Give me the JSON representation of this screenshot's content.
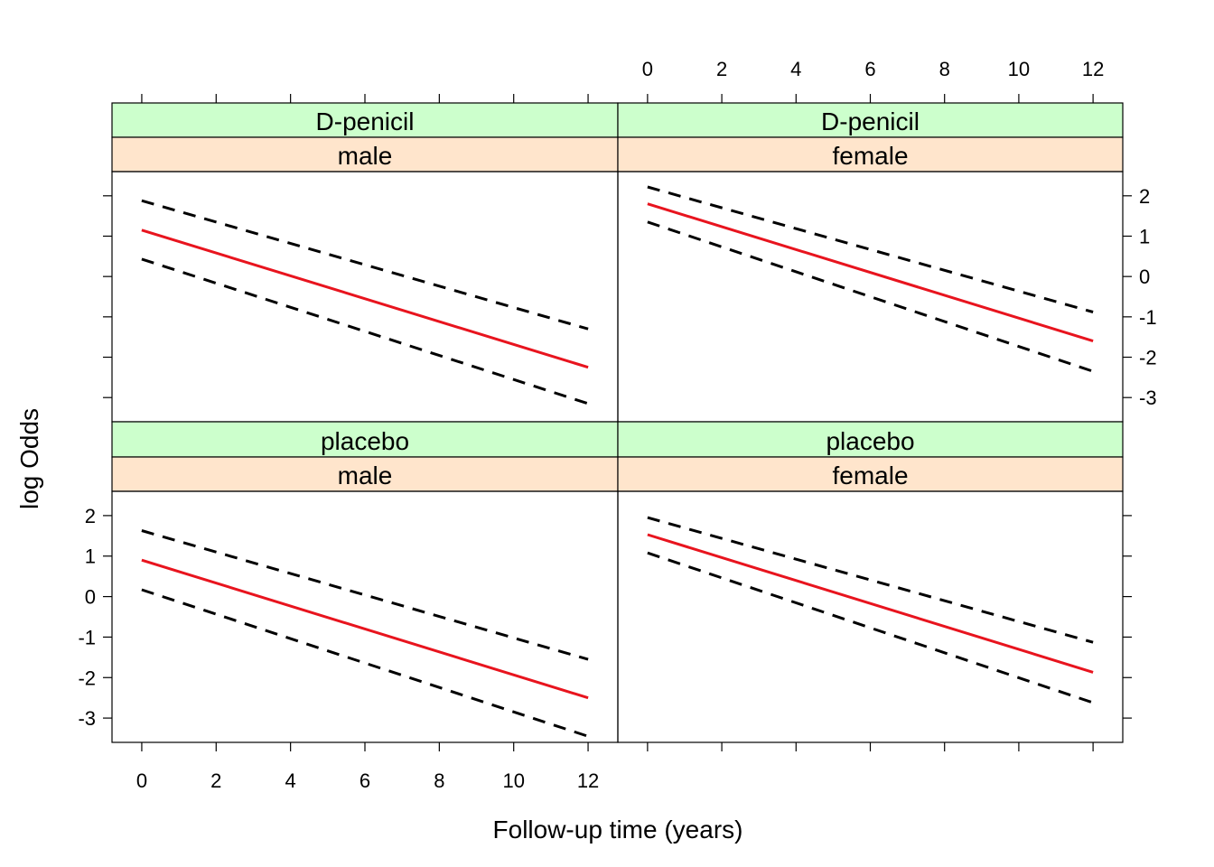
{
  "chart_data": {
    "type": "line",
    "xlabel": "Follow-up time (years)",
    "ylabel": "log Odds",
    "xlim": [
      -0.8,
      12.8
    ],
    "ylim": [
      -3.6,
      2.6
    ],
    "x_ticks": [
      0,
      2,
      4,
      6,
      8,
      10,
      12
    ],
    "y_ticks": [
      -3,
      -2,
      -1,
      0,
      1,
      2
    ],
    "grid": false,
    "colors": {
      "fit": "#e8141e",
      "band": "#000000",
      "strip_top": "#ccffcc",
      "strip_bottom": "#ffe5cc"
    },
    "panels": [
      {
        "drug": "D-penicil",
        "sex": "male",
        "x": [
          0,
          12
        ],
        "series": [
          {
            "role": "fit",
            "values": [
              1.15,
              -2.25
            ]
          },
          {
            "role": "upper",
            "values": [
              1.88,
              -1.3
            ]
          },
          {
            "role": "lower",
            "values": [
              0.43,
              -3.15
            ]
          }
        ]
      },
      {
        "drug": "D-penicil",
        "sex": "female",
        "x": [
          0,
          12
        ],
        "series": [
          {
            "role": "fit",
            "values": [
              1.8,
              -1.6
            ]
          },
          {
            "role": "upper",
            "values": [
              2.22,
              -0.88
            ]
          },
          {
            "role": "lower",
            "values": [
              1.35,
              -2.35
            ]
          }
        ]
      },
      {
        "drug": "placebo",
        "sex": "male",
        "x": [
          0,
          12
        ],
        "series": [
          {
            "role": "fit",
            "values": [
              0.9,
              -2.5
            ]
          },
          {
            "role": "upper",
            "values": [
              1.63,
              -1.55
            ]
          },
          {
            "role": "lower",
            "values": [
              0.17,
              -3.45
            ]
          }
        ]
      },
      {
        "drug": "placebo",
        "sex": "female",
        "x": [
          0,
          12
        ],
        "series": [
          {
            "role": "fit",
            "values": [
              1.53,
              -1.87
            ]
          },
          {
            "role": "upper",
            "values": [
              1.95,
              -1.13
            ]
          },
          {
            "role": "lower",
            "values": [
              1.08,
              -2.62
            ]
          }
        ]
      }
    ]
  }
}
